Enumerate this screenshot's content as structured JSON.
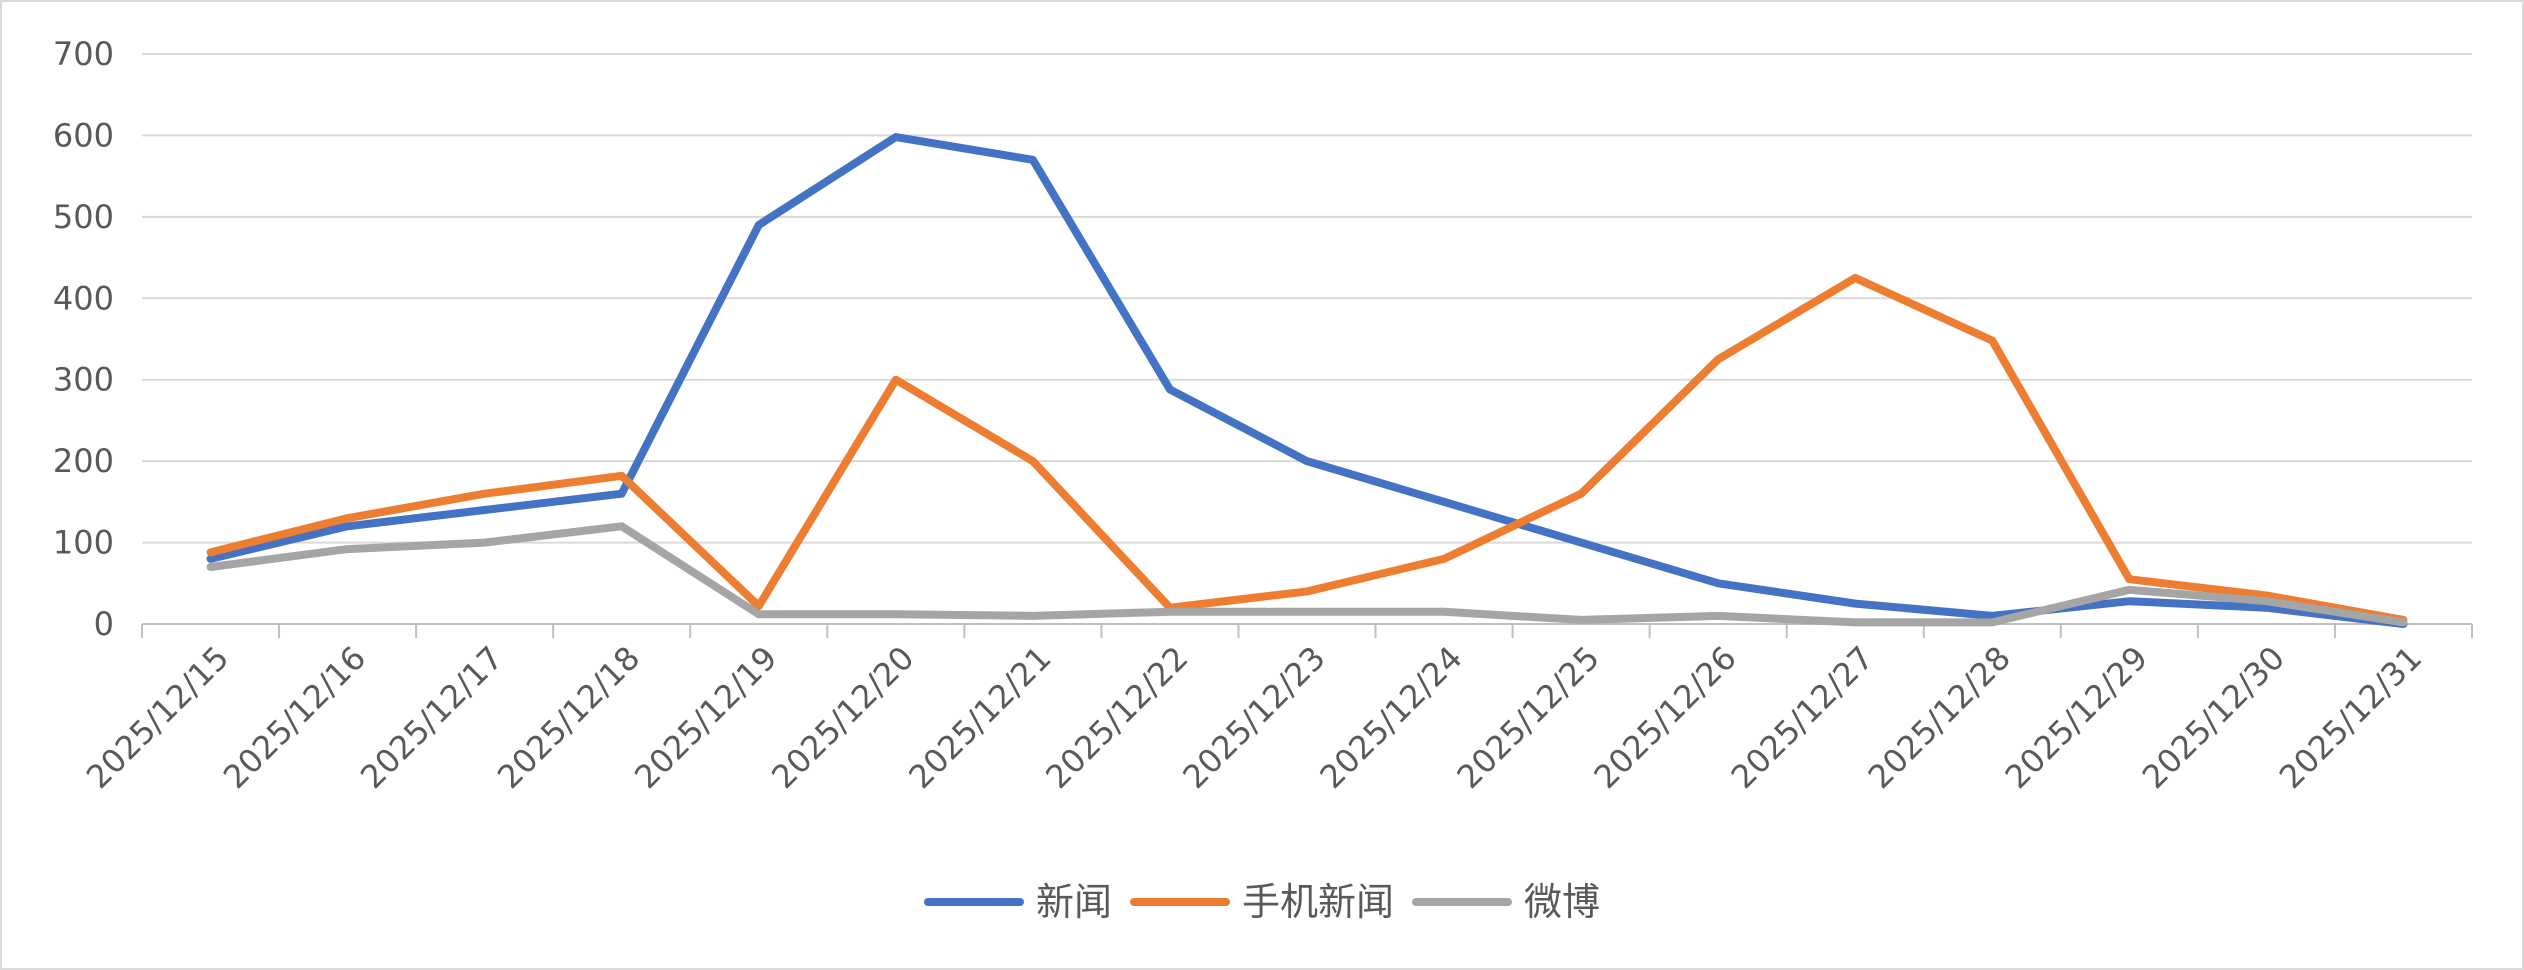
{
  "chart_data": {
    "type": "line",
    "title": "",
    "xlabel": "",
    "ylabel": "",
    "ylim": [
      0,
      700
    ],
    "yticks": [
      0,
      100,
      200,
      300,
      400,
      500,
      600,
      700
    ],
    "grid": true,
    "legend_position": "bottom",
    "categories": [
      "2025/12/15",
      "2025/12/16",
      "2025/12/17",
      "2025/12/18",
      "2025/12/19",
      "2025/12/20",
      "2025/12/21",
      "2025/12/22",
      "2025/12/23",
      "2025/12/24",
      "2025/12/25",
      "2025/12/26",
      "2025/12/27",
      "2025/12/28",
      "2025/12/29",
      "2025/12/30",
      "2025/12/31"
    ],
    "series": [
      {
        "name": "新闻",
        "color": "#4472C4",
        "values": [
          80,
          120,
          140,
          160,
          490,
          598,
          570,
          288,
          200,
          150,
          100,
          50,
          25,
          10,
          28,
          20,
          0
        ]
      },
      {
        "name": "手机新闻",
        "color": "#ED7D31",
        "values": [
          88,
          130,
          160,
          182,
          22,
          300,
          200,
          20,
          40,
          80,
          160,
          325,
          425,
          348,
          55,
          35,
          5
        ]
      },
      {
        "name": "微博",
        "color": "#A5A5A5",
        "values": [
          70,
          92,
          100,
          120,
          12,
          12,
          10,
          15,
          15,
          15,
          5,
          10,
          2,
          2,
          42,
          28,
          2
        ]
      }
    ]
  }
}
